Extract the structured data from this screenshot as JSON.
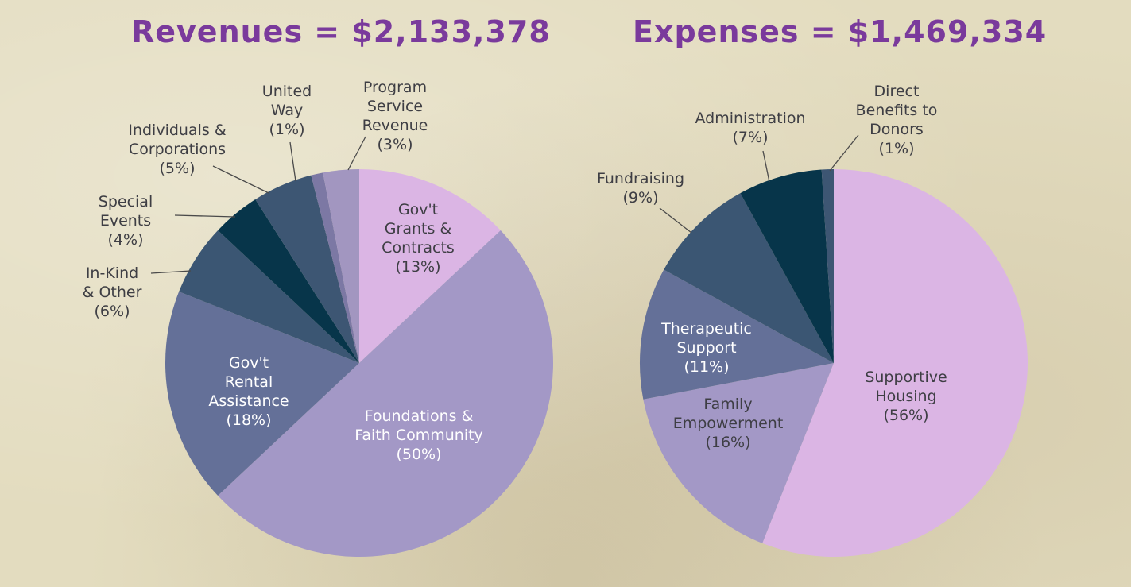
{
  "chart_data": [
    {
      "type": "pie",
      "title": "Revenues = $2,133,378",
      "slices": [
        {
          "lines": [
            "Gov't",
            "Grants &",
            "Contracts",
            "(13%)"
          ],
          "value": 13,
          "color": "#dbb5e4"
        },
        {
          "lines": [
            "Foundations &",
            "Faith Community",
            "(50%)"
          ],
          "value": 50,
          "color": "#a398c6"
        },
        {
          "lines": [
            "Gov't",
            "Rental",
            "Assistance",
            "(18%)"
          ],
          "value": 18,
          "color": "#647098"
        },
        {
          "lines": [
            "In-Kind",
            "& Other",
            "(6%)"
          ],
          "value": 6,
          "color": "#3b5673"
        },
        {
          "lines": [
            "Special",
            "Events",
            "(4%)"
          ],
          "value": 4,
          "color": "#07354a"
        },
        {
          "lines": [
            "Individuals &",
            "Corporations",
            "(5%)"
          ],
          "value": 5,
          "color": "#3d5673"
        },
        {
          "lines": [
            "United",
            "Way",
            "(1%)"
          ],
          "value": 1,
          "color": "#7c78a4"
        },
        {
          "lines": [
            "Program",
            "Service",
            "Revenue",
            "(3%)"
          ],
          "value": 3,
          "color": "#a296c0"
        }
      ]
    },
    {
      "type": "pie",
      "title": "Expenses = $1,469,334",
      "slices": [
        {
          "lines": [
            "Supportive",
            "Housing",
            "(56%)"
          ],
          "value": 56,
          "color": "#dbb5e4"
        },
        {
          "lines": [
            "Family",
            "Empowerment",
            "(16%)"
          ],
          "value": 16,
          "color": "#a398c6"
        },
        {
          "lines": [
            "Therapeutic",
            "Support",
            "(11%)"
          ],
          "value": 11,
          "color": "#647098"
        },
        {
          "lines": [
            "Fundraising",
            "(9%)"
          ],
          "value": 9,
          "color": "#3b5673"
        },
        {
          "lines": [
            "Administration",
            "(7%)"
          ],
          "value": 7,
          "color": "#07354a"
        },
        {
          "lines": [
            "Direct",
            "Benefits to",
            "Donors",
            "(1%)"
          ],
          "value": 1,
          "color": "#3d5673"
        }
      ]
    }
  ]
}
